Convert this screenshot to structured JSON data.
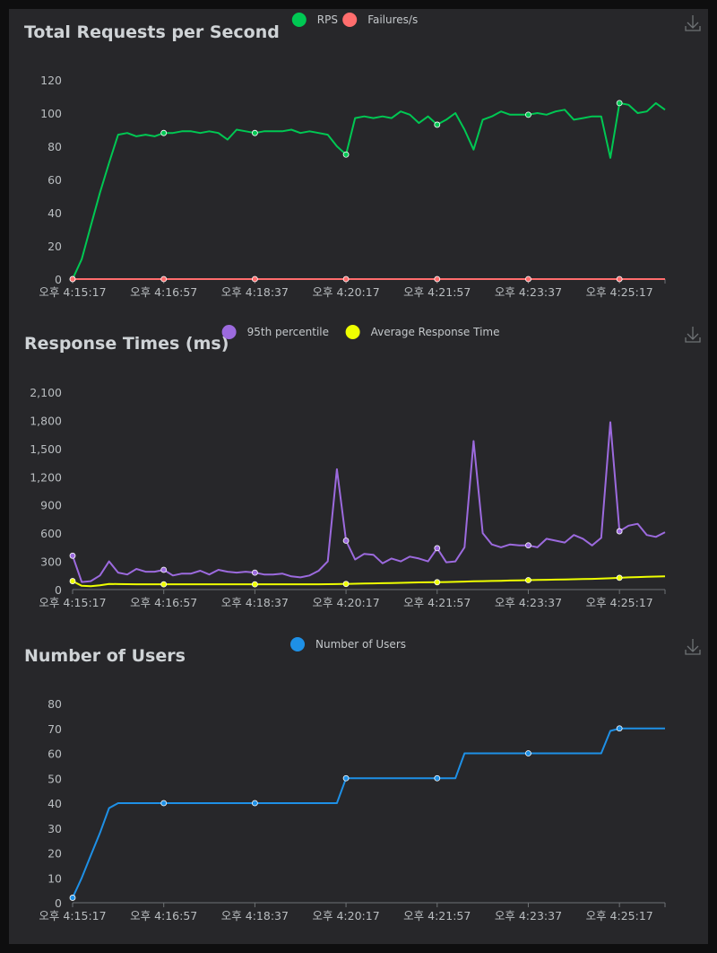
{
  "chart_data": [
    {
      "type": "line",
      "title": "Total Requests per Second",
      "legend_position": "top-center",
      "grid": false,
      "ylim": [
        0,
        120
      ],
      "y_ticks": [
        "0",
        "20",
        "40",
        "60",
        "80",
        "100",
        "120"
      ],
      "x_ticks": [
        "오후 4:15:17",
        "오후 4:16:57",
        "오후 4:18:37",
        "오후 4:20:17",
        "오후 4:21:57",
        "오후 4:23:37",
        "오후 4:25:17"
      ],
      "x": [
        "4:15:17",
        "4:15:27",
        "4:15:37",
        "4:15:47",
        "4:15:57",
        "4:16:07",
        "4:16:17",
        "4:16:27",
        "4:16:37",
        "4:16:47",
        "4:16:57",
        "4:17:07",
        "4:17:17",
        "4:17:27",
        "4:17:37",
        "4:17:47",
        "4:17:57",
        "4:18:07",
        "4:18:17",
        "4:18:27",
        "4:18:37",
        "4:18:47",
        "4:18:57",
        "4:19:07",
        "4:19:17",
        "4:19:27",
        "4:19:37",
        "4:19:47",
        "4:19:57",
        "4:20:07",
        "4:20:17",
        "4:20:27",
        "4:20:37",
        "4:20:47",
        "4:20:57",
        "4:21:07",
        "4:21:17",
        "4:21:27",
        "4:21:37",
        "4:21:47",
        "4:21:57",
        "4:22:07",
        "4:22:17",
        "4:22:27",
        "4:22:37",
        "4:22:47",
        "4:22:57",
        "4:23:07",
        "4:23:17",
        "4:23:27",
        "4:23:37",
        "4:23:47",
        "4:23:57",
        "4:24:07",
        "4:24:17",
        "4:24:27",
        "4:24:37",
        "4:24:47",
        "4:24:57",
        "4:25:07",
        "4:25:17",
        "4:25:27",
        "4:25:37",
        "4:25:47",
        "4:25:57",
        "4:26:07"
      ],
      "series": [
        {
          "name": "RPS",
          "color": "#00c853",
          "values": [
            0,
            12,
            32,
            52,
            70,
            87,
            88,
            86,
            87,
            86,
            88,
            88,
            89,
            89,
            88,
            89,
            88,
            84,
            90,
            89,
            88,
            89,
            89,
            89,
            90,
            88,
            89,
            88,
            87,
            80,
            75,
            97,
            98,
            97,
            98,
            97,
            101,
            99,
            94,
            98,
            93,
            96,
            100,
            90,
            78,
            96,
            98,
            101,
            99,
            99,
            99,
            100,
            99,
            101,
            102,
            96,
            97,
            98,
            98,
            73,
            106,
            105,
            100,
            101,
            106,
            102
          ]
        },
        {
          "name": "Failures/s",
          "color": "#ff6d6d",
          "values": [
            0,
            0,
            0,
            0,
            0,
            0,
            0,
            0,
            0,
            0,
            0,
            0,
            0,
            0,
            0,
            0,
            0,
            0,
            0,
            0,
            0,
            0,
            0,
            0,
            0,
            0,
            0,
            0,
            0,
            0,
            0,
            0,
            0,
            0,
            0,
            0,
            0,
            0,
            0,
            0,
            0,
            0,
            0,
            0,
            0,
            0,
            0,
            0,
            0,
            0,
            0,
            0,
            0,
            0,
            0,
            0,
            0,
            0,
            0,
            0,
            0,
            0,
            0,
            0,
            0,
            0
          ]
        }
      ]
    },
    {
      "type": "line",
      "title": "Response Times (ms)",
      "legend_position": "top-center",
      "grid": false,
      "ylim": [
        0,
        2100
      ],
      "y_ticks": [
        "0",
        "300",
        "600",
        "900",
        "1,200",
        "1,500",
        "1,800",
        "2,100"
      ],
      "x_ticks": [
        "오후 4:15:17",
        "오후 4:16:57",
        "오후 4:18:37",
        "오후 4:20:17",
        "오후 4:21:57",
        "오후 4:23:37",
        "오후 4:25:17"
      ],
      "x": [
        "4:15:17",
        "4:15:27",
        "4:15:37",
        "4:15:47",
        "4:15:57",
        "4:16:07",
        "4:16:17",
        "4:16:27",
        "4:16:37",
        "4:16:47",
        "4:16:57",
        "4:17:07",
        "4:17:17",
        "4:17:27",
        "4:17:37",
        "4:17:47",
        "4:17:57",
        "4:18:07",
        "4:18:17",
        "4:18:27",
        "4:18:37",
        "4:18:47",
        "4:18:57",
        "4:19:07",
        "4:19:17",
        "4:19:27",
        "4:19:37",
        "4:19:47",
        "4:19:57",
        "4:20:07",
        "4:20:17",
        "4:20:27",
        "4:20:37",
        "4:20:47",
        "4:20:57",
        "4:21:07",
        "4:21:17",
        "4:21:27",
        "4:21:37",
        "4:21:47",
        "4:21:57",
        "4:22:07",
        "4:22:17",
        "4:22:27",
        "4:22:37",
        "4:22:47",
        "4:22:57",
        "4:23:07",
        "4:23:17",
        "4:23:27",
        "4:23:37",
        "4:23:47",
        "4:23:57",
        "4:24:07",
        "4:24:17",
        "4:24:27",
        "4:24:37",
        "4:24:47",
        "4:24:57",
        "4:25:07",
        "4:25:17",
        "4:25:27",
        "4:25:37",
        "4:25:47",
        "4:25:57",
        "4:26:07"
      ],
      "series": [
        {
          "name": "95th percentile",
          "color": "#9c6ade",
          "values": [
            360,
            80,
            90,
            150,
            300,
            180,
            160,
            220,
            190,
            190,
            210,
            150,
            170,
            170,
            200,
            160,
            210,
            190,
            180,
            190,
            180,
            160,
            160,
            170,
            140,
            130,
            150,
            200,
            300,
            1280,
            520,
            320,
            380,
            370,
            280,
            330,
            300,
            350,
            330,
            300,
            440,
            290,
            300,
            450,
            1580,
            600,
            480,
            450,
            480,
            470,
            470,
            450,
            540,
            520,
            500,
            580,
            540,
            470,
            550,
            1780,
            620,
            680,
            700,
            580,
            560,
            610
          ]
        },
        {
          "name": "Average Response Time",
          "color": "#eeff00",
          "values": [
            90,
            40,
            35,
            45,
            60,
            58,
            57,
            56,
            56,
            56,
            56,
            56,
            56,
            56,
            56,
            56,
            56,
            56,
            56,
            56,
            56,
            56,
            56,
            56,
            56,
            56,
            56,
            56,
            57,
            58,
            60,
            62,
            64,
            66,
            68,
            70,
            72,
            74,
            76,
            77,
            78,
            80,
            82,
            85,
            88,
            90,
            92,
            94,
            96,
            98,
            100,
            102,
            104,
            106,
            108,
            110,
            112,
            114,
            116,
            120,
            125,
            130,
            133,
            136,
            138,
            140
          ]
        }
      ]
    },
    {
      "type": "line",
      "title": "Number of Users",
      "legend_position": "top-center",
      "grid": false,
      "ylim": [
        0,
        80
      ],
      "y_ticks": [
        "0",
        "10",
        "20",
        "30",
        "40",
        "50",
        "60",
        "70",
        "80"
      ],
      "x_ticks": [
        "오후 4:15:17",
        "오후 4:16:57",
        "오후 4:18:37",
        "오후 4:20:17",
        "오후 4:21:57",
        "오후 4:23:37",
        "오후 4:25:17"
      ],
      "x": [
        "4:15:17",
        "4:15:27",
        "4:15:37",
        "4:15:47",
        "4:15:57",
        "4:16:07",
        "4:16:17",
        "4:16:27",
        "4:16:37",
        "4:16:47",
        "4:16:57",
        "4:17:07",
        "4:17:17",
        "4:17:27",
        "4:17:37",
        "4:17:47",
        "4:17:57",
        "4:18:07",
        "4:18:17",
        "4:18:27",
        "4:18:37",
        "4:18:47",
        "4:18:57",
        "4:19:07",
        "4:19:17",
        "4:19:27",
        "4:19:37",
        "4:19:47",
        "4:19:57",
        "4:20:07",
        "4:20:17",
        "4:20:27",
        "4:20:37",
        "4:20:47",
        "4:20:57",
        "4:21:07",
        "4:21:17",
        "4:21:27",
        "4:21:37",
        "4:21:47",
        "4:21:57",
        "4:22:07",
        "4:22:17",
        "4:22:27",
        "4:22:37",
        "4:22:47",
        "4:22:57",
        "4:23:07",
        "4:23:17",
        "4:23:27",
        "4:23:37",
        "4:23:47",
        "4:23:57",
        "4:24:07",
        "4:24:17",
        "4:24:27",
        "4:24:37",
        "4:24:47",
        "4:24:57",
        "4:25:07",
        "4:25:17",
        "4:25:27",
        "4:25:37",
        "4:25:47",
        "4:25:57",
        "4:26:07"
      ],
      "series": [
        {
          "name": "Number of Users",
          "color": "#1e90e6",
          "values": [
            2,
            10,
            19,
            28,
            38,
            40,
            40,
            40,
            40,
            40,
            40,
            40,
            40,
            40,
            40,
            40,
            40,
            40,
            40,
            40,
            40,
            40,
            40,
            40,
            40,
            40,
            40,
            40,
            40,
            40,
            50,
            50,
            50,
            50,
            50,
            50,
            50,
            50,
            50,
            50,
            50,
            50,
            50,
            60,
            60,
            60,
            60,
            60,
            60,
            60,
            60,
            60,
            60,
            60,
            60,
            60,
            60,
            60,
            60,
            69,
            70,
            70,
            70,
            70,
            70,
            70
          ]
        }
      ]
    }
  ],
  "icons": {
    "download": "download-icon"
  }
}
